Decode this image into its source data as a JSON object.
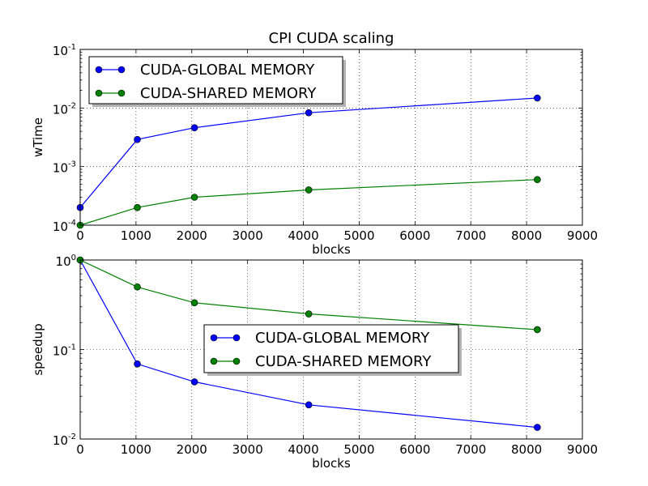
{
  "chart_data": [
    {
      "type": "line",
      "title": "CPI CUDA scaling",
      "xlabel": "blocks",
      "ylabel": "wTime",
      "xlim": [
        0,
        9000
      ],
      "ylim": [
        0.0001,
        0.1
      ],
      "yscale": "log",
      "grid": true,
      "legend_position": "top-left",
      "x_ticks": [
        "0",
        "1000",
        "2000",
        "3000",
        "4000",
        "5000",
        "6000",
        "7000",
        "8000",
        "9000"
      ],
      "y_ticks": [
        {
          "base": "10",
          "exp": "-4",
          "value": 0.0001
        },
        {
          "base": "10",
          "exp": "-3",
          "value": 0.001
        },
        {
          "base": "10",
          "exp": "-2",
          "value": 0.01
        },
        {
          "base": "10",
          "exp": "-1",
          "value": 0.1
        }
      ],
      "series": [
        {
          "name": "CUDA-GLOBAL MEMORY",
          "color": "#0000ff",
          "x": [
            0,
            1024,
            2048,
            4096,
            8192
          ],
          "y": [
            0.0002,
            0.0029,
            0.0046,
            0.0083,
            0.0148
          ]
        },
        {
          "name": "CUDA-SHARED MEMORY",
          "color": "#008000",
          "x": [
            0,
            1024,
            2048,
            4096,
            8192
          ],
          "y": [
            0.0001,
            0.0002,
            0.0003,
            0.0004,
            0.0006
          ]
        }
      ]
    },
    {
      "type": "line",
      "title": "",
      "xlabel": "blocks",
      "ylabel": "speedup",
      "xlim": [
        0,
        9000
      ],
      "ylim": [
        0.01,
        1
      ],
      "yscale": "log",
      "grid": true,
      "legend_position": "center",
      "x_ticks": [
        "0",
        "1000",
        "2000",
        "3000",
        "4000",
        "5000",
        "6000",
        "7000",
        "8000",
        "9000"
      ],
      "y_ticks": [
        {
          "base": "10",
          "exp": "-2",
          "value": 0.01
        },
        {
          "base": "10",
          "exp": "-1",
          "value": 0.1
        },
        {
          "base": "10",
          "exp": "0",
          "value": 1
        }
      ],
      "series": [
        {
          "name": "CUDA-GLOBAL MEMORY",
          "color": "#0000ff",
          "x": [
            0,
            1024,
            2048,
            4096,
            8192
          ],
          "y": [
            1.0,
            0.069,
            0.0435,
            0.0241,
            0.0135
          ]
        },
        {
          "name": "CUDA-SHARED MEMORY",
          "color": "#008000",
          "x": [
            0,
            1024,
            2048,
            4096,
            8192
          ],
          "y": [
            1.0,
            0.5,
            0.333,
            0.25,
            0.1667
          ]
        }
      ]
    }
  ]
}
